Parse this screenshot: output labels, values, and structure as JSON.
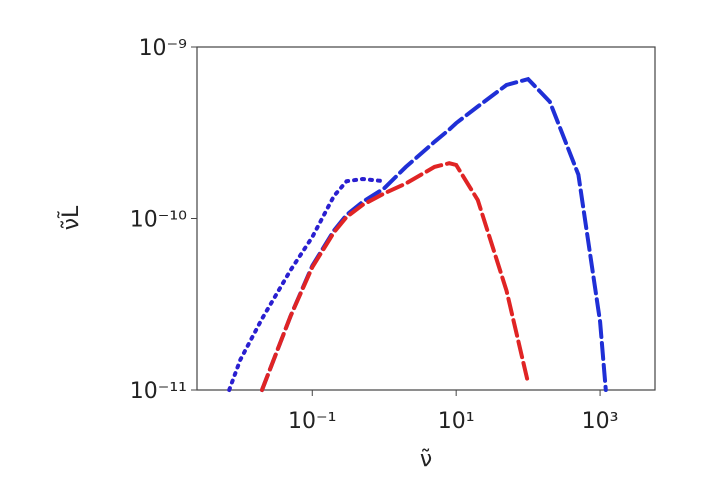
{
  "chart_data": {
    "type": "line",
    "xlabel": "ν̃",
    "ylabel": "ν̃L̃",
    "xscale": "log",
    "yscale": "log",
    "xlim": [
      0.0025,
      5800
    ],
    "ylim": [
      1e-11,
      1e-09
    ],
    "xticks": [
      {
        "value": 0.1,
        "label": "10⁻¹"
      },
      {
        "value": 10,
        "label": "10¹"
      },
      {
        "value": 1000,
        "label": "10³"
      }
    ],
    "yticks": [
      {
        "value": 1e-11,
        "label": "10⁻¹¹"
      },
      {
        "value": 1e-10,
        "label": "10⁻¹⁰"
      },
      {
        "value": 1e-09,
        "label": "10⁻⁹"
      }
    ],
    "x": [
      0.007,
      0.01,
      0.02,
      0.05,
      0.1,
      0.2,
      0.3,
      0.5,
      1,
      2,
      5,
      8,
      10,
      20,
      50,
      100,
      200,
      500,
      1000,
      1200
    ],
    "series": [
      {
        "color": "#2a1fd0",
        "linestyle": "dotted",
        "values": [
          1e-11,
          1.5e-11,
          2.6e-11,
          5e-11,
          7.8e-11,
          1.35e-10,
          1.65e-10,
          1.7e-10,
          1.65e-10,
          null,
          null,
          null,
          null,
          null,
          null,
          null,
          null,
          null,
          null,
          null
        ]
      },
      {
        "color": "#1f2fd6",
        "linestyle": "dashed",
        "values": [
          null,
          null,
          1e-11,
          2.7e-11,
          5.3e-11,
          8.5e-11,
          1.05e-10,
          1.25e-10,
          1.5e-10,
          2e-10,
          2.8e-10,
          3.3e-10,
          3.6e-10,
          4.5e-10,
          6e-10,
          6.5e-10,
          4.8e-10,
          1.8e-10,
          2.5e-11,
          1e-11
        ]
      },
      {
        "color": "#e02424",
        "linestyle": "dashed",
        "values": [
          null,
          null,
          1e-11,
          2.7e-11,
          5.2e-11,
          8.3e-11,
          1.02e-10,
          1.2e-10,
          1.4e-10,
          1.6e-10,
          2e-10,
          2.1e-10,
          2.05e-10,
          1.28e-10,
          3.8e-11,
          1.1e-11,
          null,
          null,
          null,
          null
        ]
      }
    ]
  }
}
